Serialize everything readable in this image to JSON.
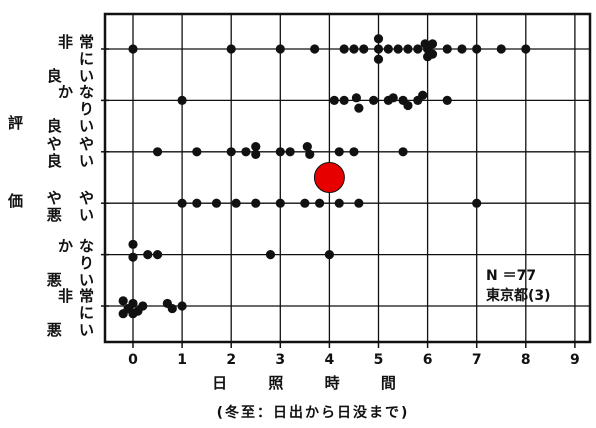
{
  "chart_data": {
    "type": "scatter",
    "title": "",
    "xlabel": "日 照 時 間",
    "xlabel_note": "(冬至：日出から日没まで)",
    "ylabel": [
      "評",
      "価"
    ],
    "x_ticks": [
      "0",
      "1",
      "2",
      "3",
      "4",
      "5",
      "6",
      "7",
      "8",
      "9"
    ],
    "xlim": [
      -0.5,
      9.3
    ],
    "categories": [
      {
        "line1": "非常に",
        "line2": "良 い"
      },
      {
        "line1": "かなり",
        "line2": "良 い"
      },
      {
        "line1": "や や",
        "line2": "良 い"
      },
      {
        "line1": "や や",
        "line2": "悪 い"
      },
      {
        "line1": "かなり",
        "line2": "悪 い"
      },
      {
        "line1": "非常に",
        "line2": "悪 い"
      }
    ],
    "annotation": [
      "N ＝77",
      "東京都(3)"
    ],
    "points_color": "#111111",
    "highlight_color": "#e60000",
    "highlight_point": {
      "x": 4.0,
      "y": 3.5
    },
    "points": [
      {
        "x": 0.0,
        "y": 6
      },
      {
        "x": 2.0,
        "y": 6
      },
      {
        "x": 3.0,
        "y": 6
      },
      {
        "x": 3.7,
        "y": 6
      },
      {
        "x": 4.3,
        "y": 6
      },
      {
        "x": 4.5,
        "y": 6
      },
      {
        "x": 4.7,
        "y": 6
      },
      {
        "x": 5.0,
        "y": 6
      },
      {
        "x": 5.0,
        "y": 6.2
      },
      {
        "x": 5.0,
        "y": 5.8
      },
      {
        "x": 5.2,
        "y": 6
      },
      {
        "x": 5.4,
        "y": 6
      },
      {
        "x": 5.6,
        "y": 6
      },
      {
        "x": 5.8,
        "y": 6
      },
      {
        "x": 5.95,
        "y": 6.1
      },
      {
        "x": 6.0,
        "y": 6
      },
      {
        "x": 6.0,
        "y": 5.85
      },
      {
        "x": 6.1,
        "y": 6.1
      },
      {
        "x": 6.1,
        "y": 5.9
      },
      {
        "x": 6.4,
        "y": 6
      },
      {
        "x": 6.7,
        "y": 6
      },
      {
        "x": 7.0,
        "y": 6
      },
      {
        "x": 7.5,
        "y": 6
      },
      {
        "x": 8.0,
        "y": 6
      },
      {
        "x": 1.0,
        "y": 5
      },
      {
        "x": 4.1,
        "y": 5
      },
      {
        "x": 4.3,
        "y": 5
      },
      {
        "x": 4.55,
        "y": 5.05
      },
      {
        "x": 4.6,
        "y": 4.85
      },
      {
        "x": 4.9,
        "y": 5
      },
      {
        "x": 5.2,
        "y": 5
      },
      {
        "x": 5.3,
        "y": 5.05
      },
      {
        "x": 5.5,
        "y": 5
      },
      {
        "x": 5.6,
        "y": 4.9
      },
      {
        "x": 5.8,
        "y": 5
      },
      {
        "x": 5.9,
        "y": 5.1
      },
      {
        "x": 6.4,
        "y": 5
      },
      {
        "x": 0.5,
        "y": 4
      },
      {
        "x": 1.3,
        "y": 4
      },
      {
        "x": 2.0,
        "y": 4
      },
      {
        "x": 2.3,
        "y": 4
      },
      {
        "x": 2.5,
        "y": 4.1
      },
      {
        "x": 2.5,
        "y": 3.95
      },
      {
        "x": 3.0,
        "y": 4
      },
      {
        "x": 3.2,
        "y": 4
      },
      {
        "x": 3.55,
        "y": 4.1
      },
      {
        "x": 3.6,
        "y": 3.95
      },
      {
        "x": 4.2,
        "y": 4
      },
      {
        "x": 4.5,
        "y": 4
      },
      {
        "x": 5.5,
        "y": 4
      },
      {
        "x": 1.0,
        "y": 3
      },
      {
        "x": 1.3,
        "y": 3
      },
      {
        "x": 1.7,
        "y": 3
      },
      {
        "x": 2.1,
        "y": 3
      },
      {
        "x": 2.5,
        "y": 3
      },
      {
        "x": 3.0,
        "y": 3
      },
      {
        "x": 3.5,
        "y": 3
      },
      {
        "x": 3.8,
        "y": 3
      },
      {
        "x": 4.2,
        "y": 3
      },
      {
        "x": 4.6,
        "y": 3
      },
      {
        "x": 7.0,
        "y": 3
      },
      {
        "x": 0.0,
        "y": 2.2
      },
      {
        "x": 0.0,
        "y": 1.95
      },
      {
        "x": 0.3,
        "y": 2
      },
      {
        "x": 0.5,
        "y": 2
      },
      {
        "x": 2.8,
        "y": 2
      },
      {
        "x": 4.0,
        "y": 2
      },
      {
        "x": -0.2,
        "y": 1.1
      },
      {
        "x": -0.1,
        "y": 0.95
      },
      {
        "x": -0.2,
        "y": 0.85
      },
      {
        "x": 0.0,
        "y": 1.05
      },
      {
        "x": 0.1,
        "y": 0.9
      },
      {
        "x": 0.2,
        "y": 1
      },
      {
        "x": 0.0,
        "y": 0.85
      },
      {
        "x": 0.7,
        "y": 1.05
      },
      {
        "x": 0.8,
        "y": 0.95
      },
      {
        "x": 1.0,
        "y": 1
      }
    ]
  }
}
